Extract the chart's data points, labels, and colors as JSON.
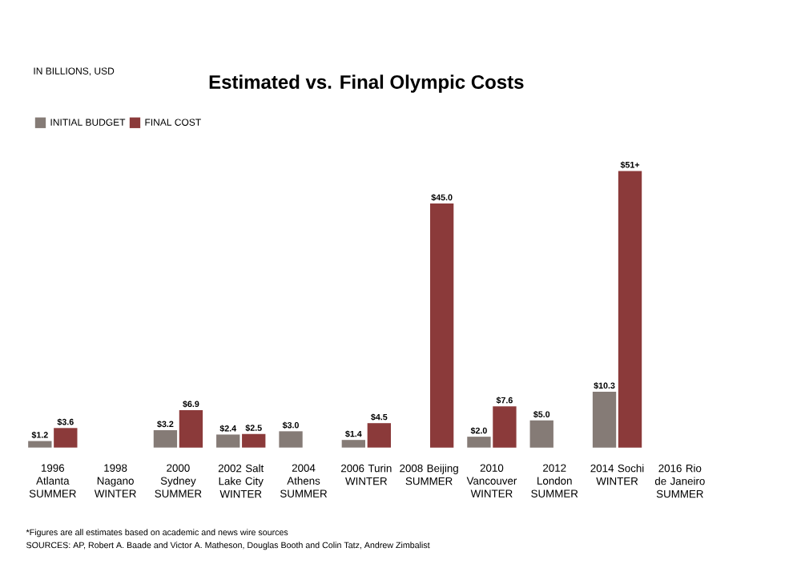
{
  "chart_data": {
    "type": "bar",
    "title": "Estimated vs. Final Olympic Costs",
    "subtitle": "IN BILLIONS, USD",
    "categories": [
      "1996 Atlanta SUMMER",
      "1998 Nagano WINTER",
      "2000 Sydney SUMMER",
      "2002 Salt Lake City WINTER",
      "2004 Athens SUMMER",
      "2006 Turin WINTER",
      "2008 Beijing SUMMER",
      "2010 Vancouver WINTER",
      "2012 London SUMMER",
      "2014 Sochi WINTER",
      "2016 Rio de Janeiro SUMMER"
    ],
    "series": [
      {
        "name": "INITIAL BUDGET",
        "color": "#857b76",
        "values": [
          1.2,
          null,
          3.2,
          2.4,
          3.0,
          1.4,
          null,
          2.0,
          5.0,
          10.3,
          null
        ],
        "value_labels": [
          "$1.2",
          null,
          "$3.2",
          "$2.4",
          "$3.0",
          "$1.4",
          null,
          "$2.0",
          "$5.0",
          "$10.3",
          null
        ]
      },
      {
        "name": "FINAL COST",
        "color": "#8b3a3a",
        "values": [
          3.6,
          null,
          6.9,
          2.5,
          null,
          4.5,
          45.0,
          7.6,
          null,
          51,
          null
        ],
        "value_labels": [
          "$3.6",
          null,
          "$6.9",
          "$2.5",
          null,
          "$4.5",
          "$45.0",
          "$7.6",
          null,
          "$51+",
          null
        ]
      }
    ],
    "legend": "top left",
    "tick_labels": "x",
    "annotations": [
      "*Figures are all estimates based on academic and news wire sources",
      "SOURCES: AP, Robert A. Baade and Victor A. Matheson, Douglas Booth and Colin Tatz, Andrew Zimbalist"
    ]
  }
}
